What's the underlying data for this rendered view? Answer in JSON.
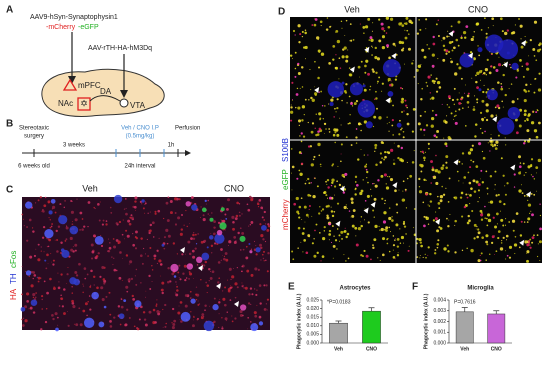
{
  "panel_a": {
    "label": "A",
    "vector_1": "AAV9-hSyn-Synaptophysin1",
    "vector_1_parts": [
      "-mCherry",
      "-eGFP"
    ],
    "vector_2": "AAV-rTH-HA-hM3Dq",
    "regions": [
      "mPFC",
      "DA",
      "NAc",
      "VTA"
    ]
  },
  "panel_b": {
    "label": "B",
    "surgery": [
      "Stereotaxic",
      "surgery"
    ],
    "wait": "3 weeks",
    "treatment": [
      "Veh / CNO I.P",
      "(0.5mg/kg)"
    ],
    "perfusion": "Perfusion",
    "delay": "1h",
    "age": "6 weeks old",
    "interval": "24h interval"
  },
  "panel_c": {
    "label": "C",
    "columns": [
      "Veh",
      "CNO"
    ],
    "stains": [
      "HA",
      "TH",
      "cFos"
    ]
  },
  "panel_d": {
    "label": "D",
    "columns": [
      "Veh",
      "CNO"
    ],
    "stains": [
      "mCherry",
      "eGFP",
      "S100B"
    ]
  },
  "chart_data": [
    {
      "type": "bar",
      "label": "E",
      "title": "Astrocytes",
      "annotation": "*P=0.0183",
      "ylabel": "Phagocytic index (A.U.)",
      "categories": [
        "Veh",
        "CNO"
      ],
      "values": [
        0.0115,
        0.0185
      ],
      "errors": [
        0.0013,
        0.002
      ],
      "colors": [
        "#a6a6a6",
        "#1ecb1e"
      ],
      "ylim": [
        0,
        0.025
      ],
      "yticks": [
        {
          "value": 0,
          "label": "0.000"
        },
        {
          "value": 0.005,
          "label": "0.005"
        },
        {
          "value": 0.01,
          "label": "0.010"
        },
        {
          "value": 0.015,
          "label": "0.015"
        },
        {
          "value": 0.02,
          "label": "0.020"
        },
        {
          "value": 0.025,
          "label": "0.025"
        }
      ]
    },
    {
      "type": "bar",
      "label": "F",
      "title": "Microglia",
      "annotation": "P=0.7616",
      "ylabel": "Phagocytic index (A.U.)",
      "categories": [
        "Veh",
        "CNO"
      ],
      "values": [
        0.0029,
        0.0027
      ],
      "errors": [
        0.0004,
        0.0003
      ],
      "colors": [
        "#a6a6a6",
        "#c866d8"
      ],
      "ylim": [
        0,
        0.004
      ],
      "yticks": [
        {
          "value": 0,
          "label": "0.000"
        },
        {
          "value": 0.001,
          "label": "0.001"
        },
        {
          "value": 0.002,
          "label": "0.002"
        },
        {
          "value": 0.003,
          "label": "0.003"
        },
        {
          "value": 0.004,
          "label": "0.004"
        }
      ]
    }
  ]
}
